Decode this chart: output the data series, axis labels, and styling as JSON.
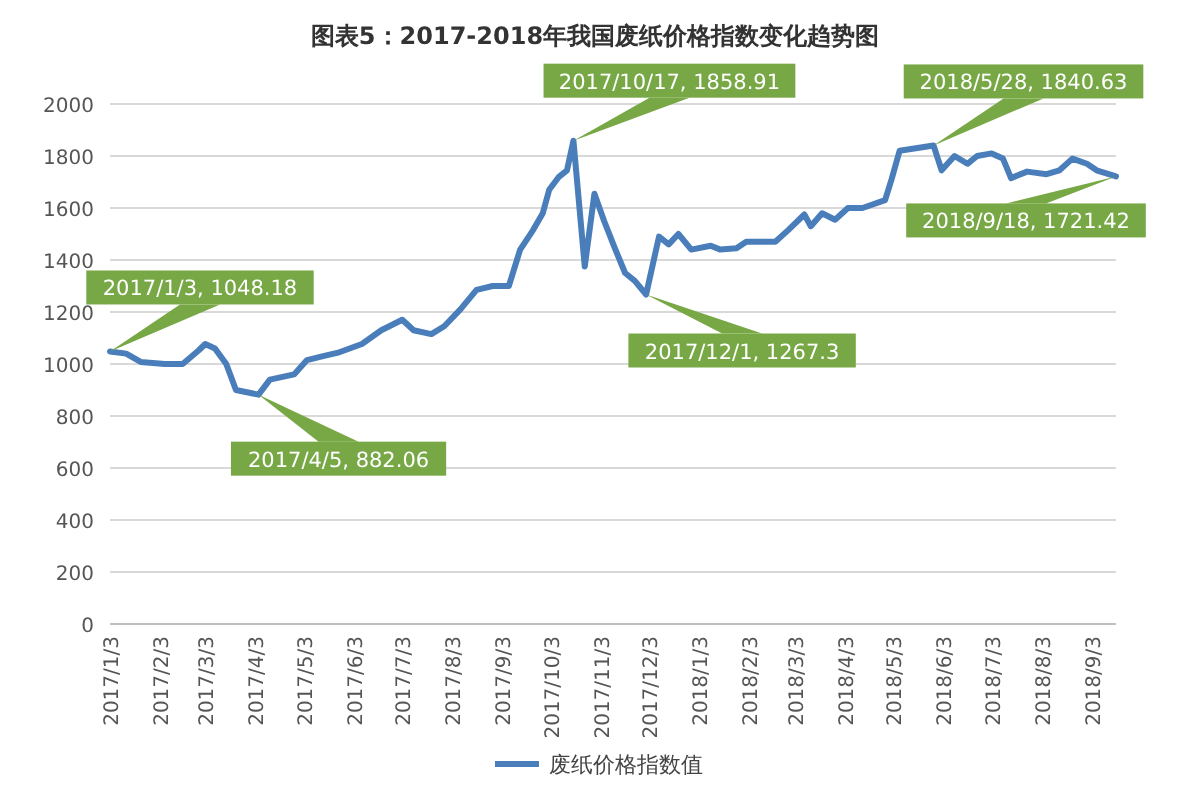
{
  "chart_data": {
    "type": "line",
    "title": "图表5：2017-2018年我国废纸价格指数变化趋势图",
    "x": [
      "2017-01-03",
      "2017-01-13",
      "2017-01-22",
      "2017-02-06",
      "2017-02-17",
      "2017-02-27",
      "2017-03-03",
      "2017-03-09",
      "2017-03-16",
      "2017-03-22",
      "2017-04-05",
      "2017-04-12",
      "2017-04-27",
      "2017-05-05",
      "2017-05-15",
      "2017-05-25",
      "2017-06-08",
      "2017-06-20",
      "2017-07-03",
      "2017-07-10",
      "2017-07-21",
      "2017-07-29",
      "2017-08-08",
      "2017-08-18",
      "2017-08-28",
      "2017-09-07",
      "2017-09-14",
      "2017-09-22",
      "2017-09-28",
      "2017-10-02",
      "2017-10-08",
      "2017-10-13",
      "2017-10-17",
      "2017-10-24",
      "2017-10-30",
      "2017-11-05",
      "2017-11-12",
      "2017-11-18",
      "2017-11-24",
      "2017-12-01",
      "2017-12-09",
      "2017-12-15",
      "2017-12-21",
      "2017-12-29",
      "2018-01-10",
      "2018-01-16",
      "2018-01-26",
      "2018-02-01",
      "2018-02-19",
      "2018-02-27",
      "2018-03-09",
      "2018-03-13",
      "2018-03-20",
      "2018-03-28",
      "2018-04-05",
      "2018-04-14",
      "2018-04-28",
      "2018-05-02",
      "2018-05-07",
      "2018-05-28",
      "2018-06-02",
      "2018-06-10",
      "2018-06-18",
      "2018-06-24",
      "2018-07-03",
      "2018-07-10",
      "2018-07-15",
      "2018-07-25",
      "2018-08-06",
      "2018-08-14",
      "2018-08-22",
      "2018-08-31",
      "2018-09-06",
      "2018-09-18"
    ],
    "series": [
      {
        "name": "废纸价格指数值",
        "color": "#4a7ebb",
        "values": [
          1048.18,
          1040,
          1008,
          1000,
          1000,
          1053,
          1077,
          1060,
          1000,
          900,
          882.06,
          940,
          960,
          1015,
          1030,
          1045,
          1077,
          1130,
          1170,
          1130,
          1115,
          1145,
          1210,
          1285,
          1300,
          1300,
          1440,
          1515,
          1580,
          1670,
          1720,
          1745,
          1858.91,
          1375,
          1655,
          1550,
          1440,
          1350,
          1320,
          1267.3,
          1490,
          1460,
          1500,
          1440,
          1455,
          1440,
          1445,
          1470,
          1470,
          1515,
          1575,
          1530,
          1580,
          1555,
          1600,
          1600,
          1630,
          1710,
          1820,
          1840.63,
          1745,
          1800,
          1770,
          1800,
          1810,
          1790,
          1715,
          1740,
          1730,
          1745,
          1790,
          1770,
          1745,
          1721.42
        ]
      }
    ],
    "xlim": [
      "2017-01-03",
      "2018-09-18"
    ],
    "xticks": [
      {
        "value": "2017-01-03",
        "label": "2017/1/3"
      },
      {
        "value": "2017-02-03",
        "label": "2017/2/3"
      },
      {
        "value": "2017-03-03",
        "label": "2017/3/3"
      },
      {
        "value": "2017-04-03",
        "label": "2017/4/3"
      },
      {
        "value": "2017-05-03",
        "label": "2017/5/3"
      },
      {
        "value": "2017-06-03",
        "label": "2017/6/3"
      },
      {
        "value": "2017-07-03",
        "label": "2017/7/3"
      },
      {
        "value": "2017-08-03",
        "label": "2017/8/3"
      },
      {
        "value": "2017-09-03",
        "label": "2017/9/3"
      },
      {
        "value": "2017-10-03",
        "label": "2017/10/3"
      },
      {
        "value": "2017-11-03",
        "label": "2017/11/3"
      },
      {
        "value": "2017-12-03",
        "label": "2017/12/3"
      },
      {
        "value": "2018-01-03",
        "label": "2018/1/3"
      },
      {
        "value": "2018-02-03",
        "label": "2018/2/3"
      },
      {
        "value": "2018-03-03",
        "label": "2018/3/3"
      },
      {
        "value": "2018-04-03",
        "label": "2018/4/3"
      },
      {
        "value": "2018-05-03",
        "label": "2018/5/3"
      },
      {
        "value": "2018-06-03",
        "label": "2018/6/3"
      },
      {
        "value": "2018-07-03",
        "label": "2018/7/3"
      },
      {
        "value": "2018-08-03",
        "label": "2018/8/3"
      },
      {
        "value": "2018-09-03",
        "label": "2018/9/3"
      }
    ],
    "ylim": [
      0,
      2000
    ],
    "yticks": [
      0,
      200,
      400,
      600,
      800,
      1000,
      1200,
      1400,
      1600,
      1800,
      2000
    ],
    "grid": "y",
    "legend": "bottom",
    "marker": "none",
    "line_style": "solid",
    "annotations": [
      {
        "text": "2017/1/3, 1048.18",
        "x": "2017-01-03",
        "y": 1048.18
      },
      {
        "text": "2017/4/5, 882.06",
        "x": "2017-04-05",
        "y": 882.06
      },
      {
        "text": "2017/10/17, 1858.91",
        "x": "2017-10-17",
        "y": 1858.91
      },
      {
        "text": "2017/12/1, 1267.3",
        "x": "2017-12-01",
        "y": 1267.3
      },
      {
        "text": "2018/5/28, 1840.63",
        "x": "2018-05-28",
        "y": 1840.63
      },
      {
        "text": "2018/9/18, 1721.42",
        "x": "2018-09-18",
        "y": 1721.42
      }
    ]
  }
}
